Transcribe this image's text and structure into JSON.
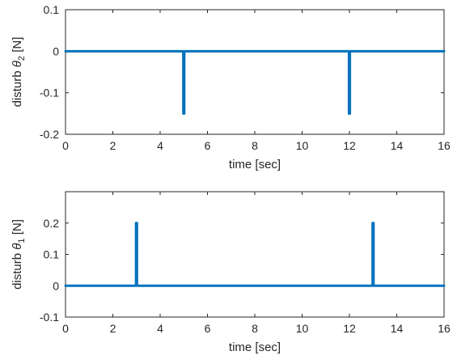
{
  "chart_data": [
    {
      "type": "line",
      "xlabel": "time [sec]",
      "ylabel": {
        "prefix": "disturb ",
        "symbol": "θ",
        "subscript": "2",
        "suffix": " [N]"
      },
      "xlim": [
        0,
        16
      ],
      "ylim": [
        -0.2,
        0.1
      ],
      "xticks": [
        "0",
        "2",
        "4",
        "6",
        "8",
        "10",
        "12",
        "14",
        "16"
      ],
      "yticks": [
        "-0.2",
        "-0.1",
        "0",
        "0.1"
      ],
      "grid": false,
      "color": "#0072BD",
      "series": [
        {
          "x": [
            0,
            4.98,
            4.98,
            5.02,
            5.02,
            11.98,
            11.98,
            12.02,
            12.02,
            16
          ],
          "y": [
            0,
            0,
            -0.15,
            -0.15,
            0,
            0,
            -0.15,
            -0.15,
            0,
            0
          ]
        }
      ]
    },
    {
      "type": "line",
      "xlabel": "time [sec]",
      "ylabel": {
        "prefix": "disturb ",
        "symbol": "θ",
        "subscript": "1",
        "suffix": " [N]"
      },
      "xlim": [
        0,
        16
      ],
      "ylim": [
        -0.1,
        0.3
      ],
      "xticks": [
        "0",
        "2",
        "4",
        "6",
        "8",
        "10",
        "12",
        "14",
        "16"
      ],
      "yticks": [
        "-0.1",
        "0",
        "0.1",
        "0.2"
      ],
      "grid": false,
      "color": "#0072BD",
      "series": [
        {
          "x": [
            0,
            2.98,
            2.98,
            3.02,
            3.02,
            12.98,
            12.98,
            13.02,
            13.02,
            16
          ],
          "y": [
            0,
            0,
            0.2,
            0.2,
            0,
            0,
            0.2,
            0.2,
            0,
            0
          ]
        }
      ]
    }
  ]
}
